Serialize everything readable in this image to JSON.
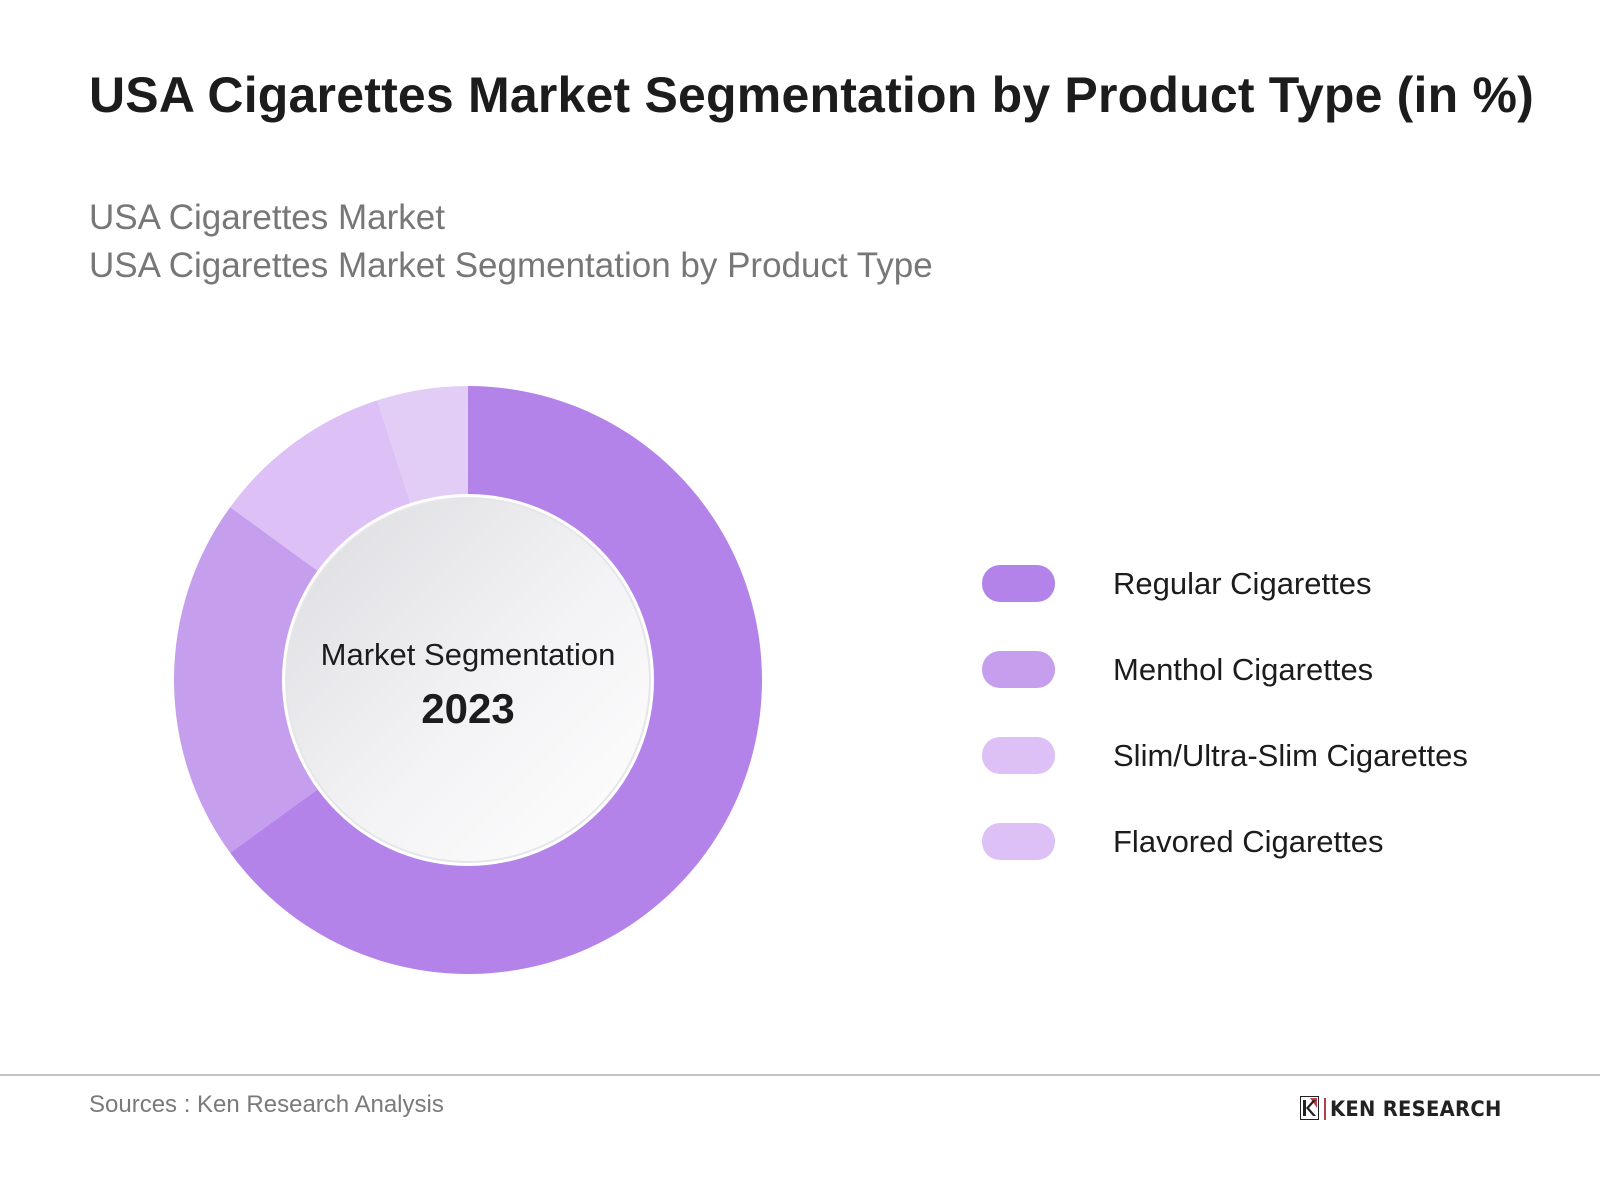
{
  "header": {
    "title": "USA Cigarettes Market Segmentation by Product Type (in %)",
    "subtitle_line1": "USA Cigarettes Market",
    "subtitle_line2": "USA Cigarettes Market Segmentation by Product Type"
  },
  "donut": {
    "center_label": "Market Segmentation",
    "center_year": "2023"
  },
  "legend": {
    "items": [
      {
        "label": "Regular Cigarettes",
        "color": "#b383ea"
      },
      {
        "label": "Menthol Cigarettes",
        "color": "#c59eed"
      },
      {
        "label": "Slim/Ultra-Slim Cigarettes",
        "color": "#dcc0f6"
      },
      {
        "label": "Flavored Cigarettes",
        "color": "#dcc0f6"
      }
    ]
  },
  "footer": {
    "source": "Sources : Ken Research Analysis",
    "logo_text": "KEN RESEARCH"
  },
  "chart_data": {
    "type": "pie",
    "subtype": "donut",
    "title": "USA Cigarettes Market Segmentation by Product Type (in %)",
    "subtitle": "USA Cigarettes Market Segmentation by Product Type",
    "center_text": [
      "Market Segmentation",
      "2023"
    ],
    "categories": [
      "Regular Cigarettes",
      "Menthol Cigarettes",
      "Slim/Ultra-Slim Cigarettes",
      "Flavored Cigarettes"
    ],
    "values": [
      65,
      20,
      10,
      5
    ],
    "unit": "%",
    "colors": [
      "#b383ea",
      "#c59eed",
      "#dcc0f6",
      "#e2cdf7"
    ],
    "start_angle": "12 o'clock, clockwise",
    "legend_position": "right",
    "data_labels": false,
    "note": "Values estimated from slice angles; no data labels shown"
  }
}
